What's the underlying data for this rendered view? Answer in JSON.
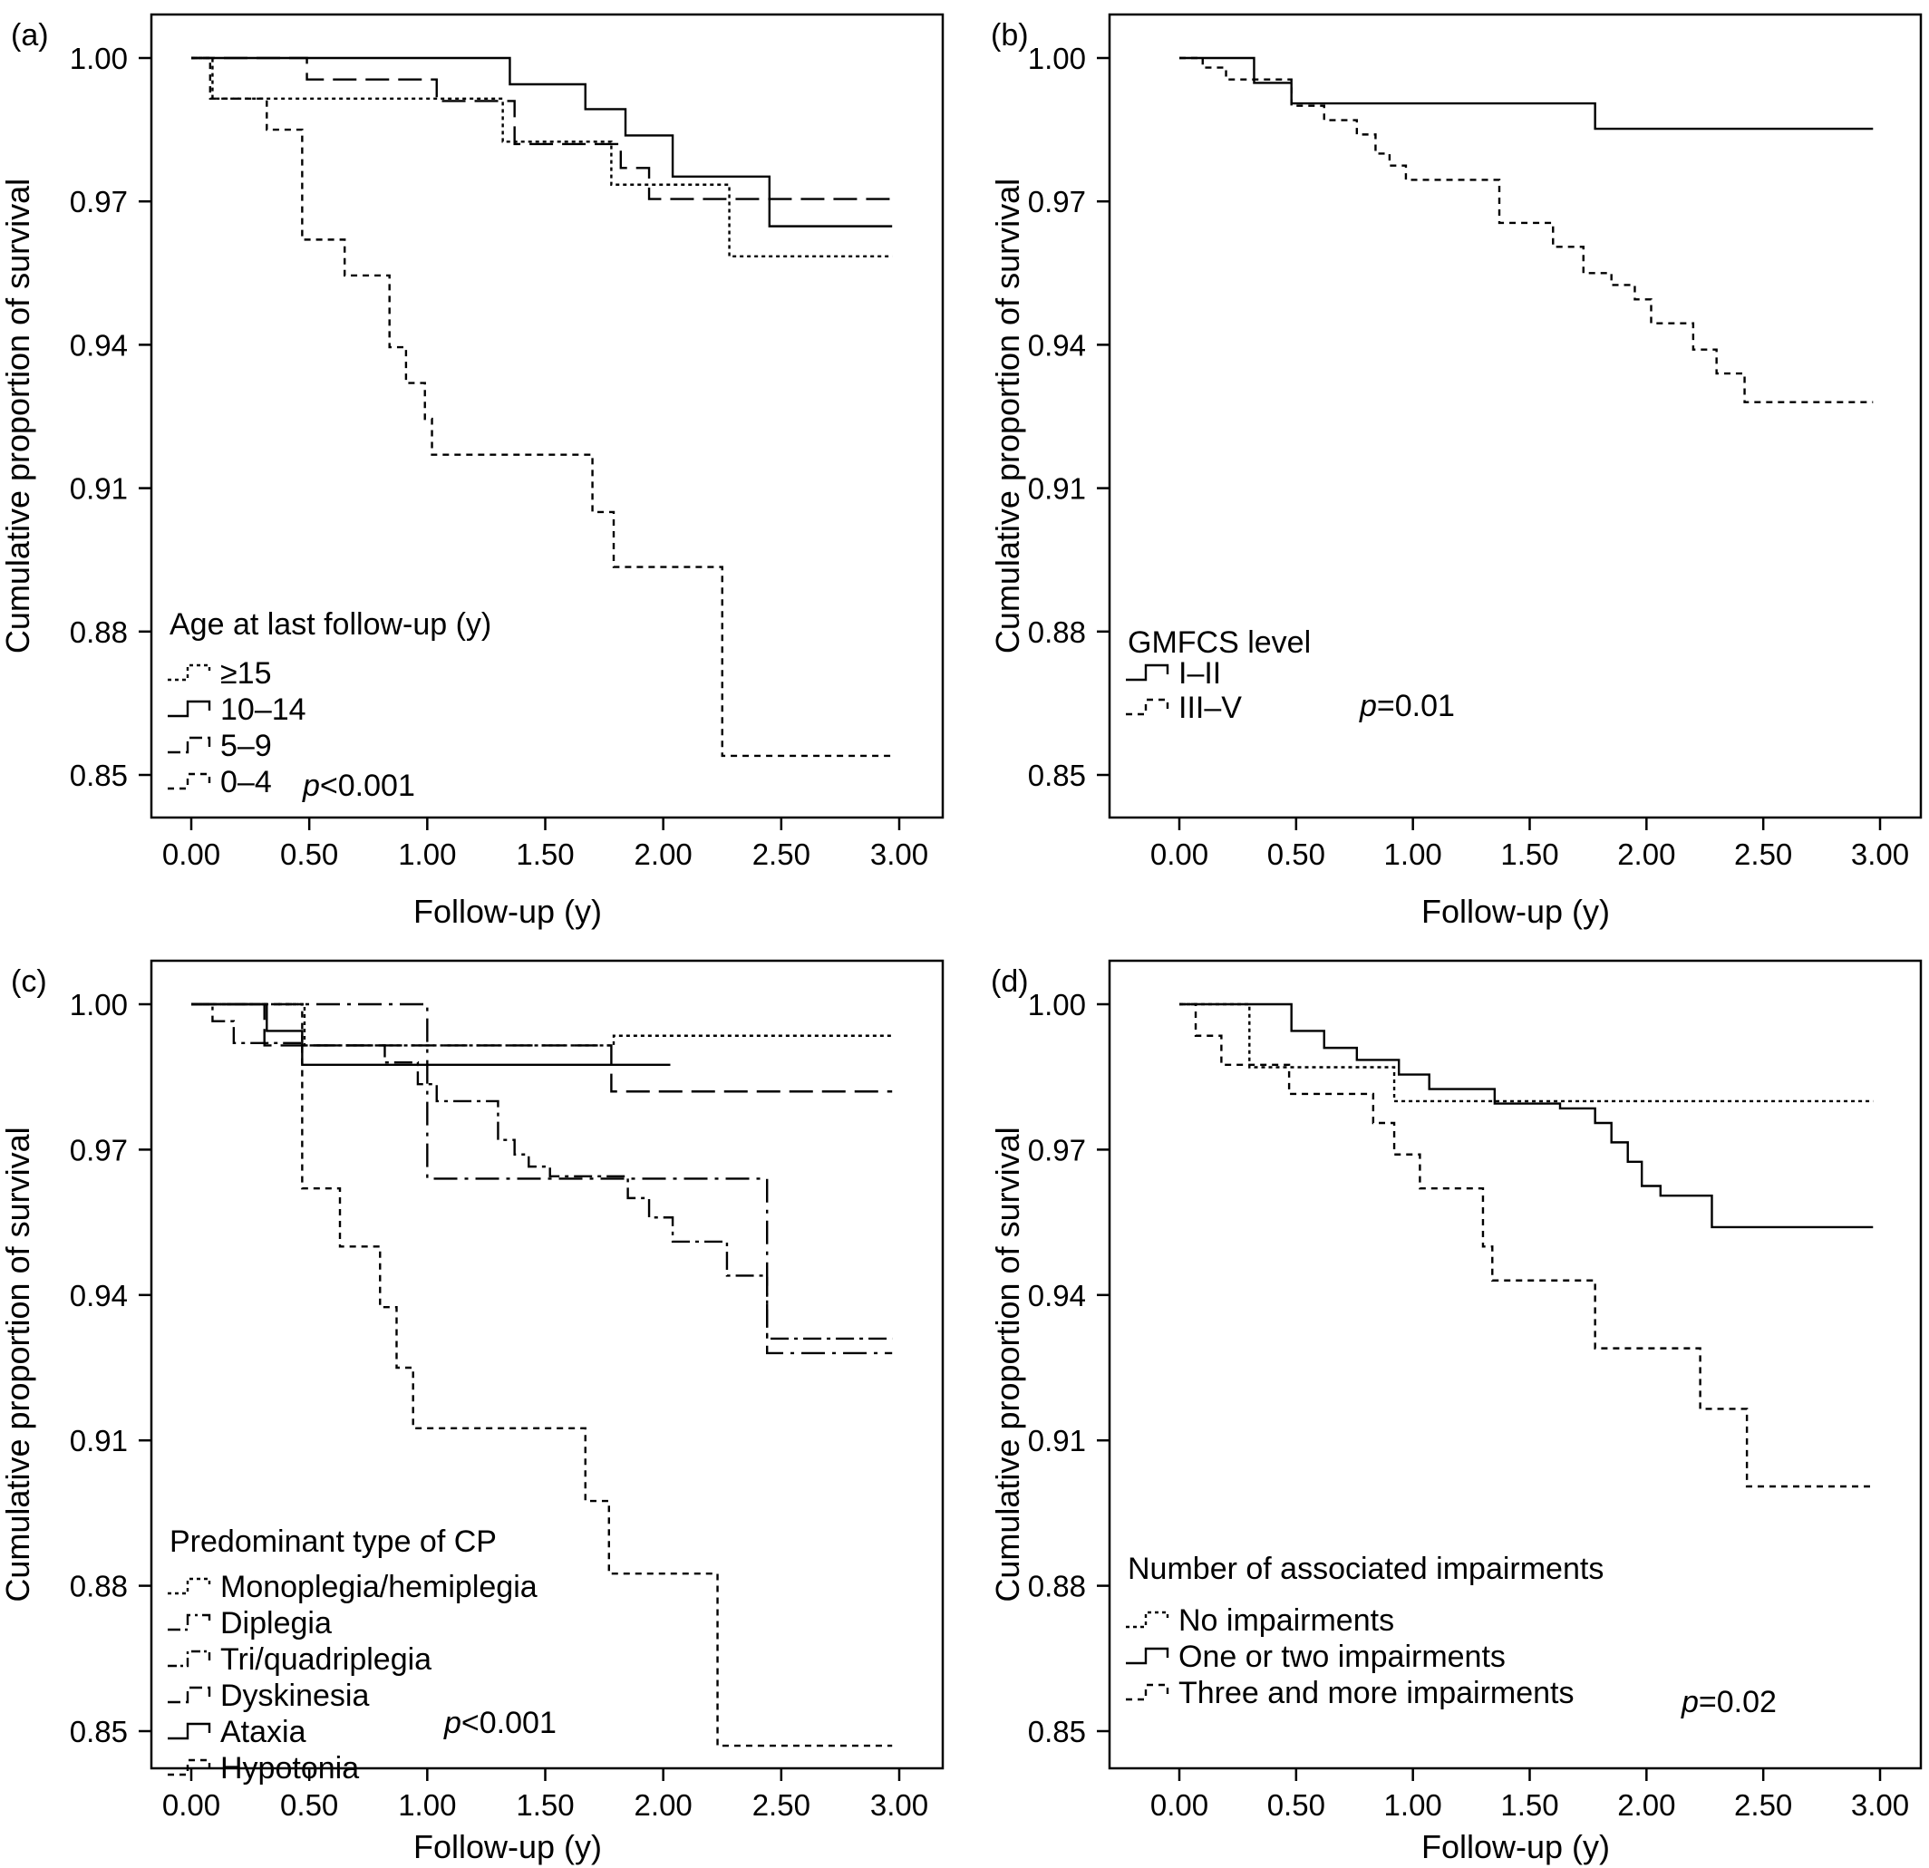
{
  "chart_data": [
    {
      "type": "line",
      "step": true,
      "panel_label": "(a)",
      "xlabel": "Follow-up (y)",
      "ylabel": "Cumulative proportion of survival",
      "xlim": [
        -0.18,
        3.2
      ],
      "ylim": [
        0.842,
        1.008
      ],
      "xticks": [
        0,
        0.5,
        1,
        1.5,
        2,
        2.5,
        3
      ],
      "xtick_labels": [
        "0.00",
        "0.50",
        "1.00",
        "1.50",
        "2.00",
        "2.50",
        "3.00"
      ],
      "yticks": [
        0.85,
        0.88,
        0.91,
        0.94,
        0.97,
        1.0
      ],
      "ytick_labels": [
        "0.85",
        "0.88",
        "0.91",
        "0.94",
        "0.97",
        "1.00"
      ],
      "legend_title": "Age at last follow-up (y)",
      "legend_position": "bottom-left",
      "p_value": "<0.001",
      "series": [
        {
          "name": "≥15",
          "dash": "4,4",
          "x": [
            0,
            0.09,
            1.32,
            1.78,
            2.28,
            2.97
          ],
          "y": [
            1.0,
            0.9915,
            0.9825,
            0.9735,
            0.9585,
            0.9585
          ]
        },
        {
          "name": "10–14",
          "dash": "",
          "x": [
            0,
            1.35,
            1.67,
            1.84,
            2.04,
            2.45,
            2.97
          ],
          "y": [
            1.0,
            0.9945,
            0.9893,
            0.9838,
            0.9752,
            0.9648,
            0.9648
          ]
        },
        {
          "name": "5–9",
          "dash": "26,10",
          "x": [
            0,
            0.49,
            1.04,
            1.37,
            1.82,
            1.94,
            2.97
          ],
          "y": [
            1.0,
            0.9955,
            0.991,
            0.982,
            0.977,
            0.9705,
            0.9705
          ]
        },
        {
          "name": "0–4",
          "dash": "7,6",
          "x": [
            0,
            0.08,
            0.32,
            0.47,
            0.65,
            0.84,
            0.91,
            0.99,
            1.02,
            1.7,
            1.79,
            2.25,
            2.97
          ],
          "y": [
            1.0,
            0.9915,
            0.985,
            0.962,
            0.9545,
            0.9395,
            0.932,
            0.9245,
            0.917,
            0.905,
            0.8935,
            0.854,
            0.854
          ]
        }
      ]
    },
    {
      "type": "line",
      "step": true,
      "panel_label": "(b)",
      "xlabel": "Follow-up (y)",
      "ylabel": "Cumulative proportion of survival",
      "xlim": [
        -0.18,
        3.2
      ],
      "ylim": [
        0.842,
        1.008
      ],
      "xticks": [
        0,
        0.5,
        1,
        1.5,
        2,
        2.5,
        3
      ],
      "xtick_labels": [
        "0.00",
        "0.50",
        "1.00",
        "1.50",
        "2.00",
        "2.50",
        "3.00"
      ],
      "yticks": [
        0.85,
        0.88,
        0.91,
        0.94,
        0.97,
        1.0
      ],
      "ytick_labels": [
        "0.85",
        "0.88",
        "0.91",
        "0.94",
        "0.97",
        "1.00"
      ],
      "legend_title": "GMFCS level",
      "legend_position": "bottom-left",
      "p_value": "=0.01",
      "series": [
        {
          "name": "I–II",
          "dash": "",
          "x": [
            0,
            0.32,
            0.48,
            1.78,
            2.97
          ],
          "y": [
            1.0,
            0.9948,
            0.9905,
            0.9852,
            0.9852
          ]
        },
        {
          "name": "III–V",
          "dash": "7,6",
          "x": [
            0,
            0.1,
            0.2,
            0.48,
            0.62,
            0.76,
            0.84,
            0.9,
            0.97,
            1.37,
            1.6,
            1.73,
            1.85,
            1.95,
            2.02,
            2.2,
            2.3,
            2.42,
            2.97
          ],
          "y": [
            1.0,
            0.998,
            0.9955,
            0.99,
            0.987,
            0.984,
            0.98,
            0.9775,
            0.9745,
            0.9655,
            0.9605,
            0.955,
            0.9525,
            0.9495,
            0.9445,
            0.939,
            0.934,
            0.928,
            0.928
          ]
        }
      ]
    },
    {
      "type": "line",
      "step": true,
      "panel_label": "(c)",
      "xlabel": "Follow-up (y)",
      "ylabel": "Cumulative proportion of survival",
      "xlim": [
        -0.18,
        3.2
      ],
      "ylim": [
        0.842,
        1.008
      ],
      "xticks": [
        0,
        0.5,
        1,
        1.5,
        2,
        2.5,
        3
      ],
      "xtick_labels": [
        "0.00",
        "0.50",
        "1.00",
        "1.50",
        "2.00",
        "2.50",
        "3.00"
      ],
      "yticks": [
        0.85,
        0.88,
        0.91,
        0.94,
        0.97,
        1.0
      ],
      "ytick_labels": [
        "0.85",
        "0.88",
        "0.91",
        "0.94",
        "0.97",
        "1.00"
      ],
      "legend_title": "Predominant type of CP",
      "legend_position": "bottom-left",
      "p_value": "<0.001",
      "series": [
        {
          "name": "Monoplegia/hemiplegia",
          "dash": "4,4",
          "x": [
            0,
            0.48,
            1.79,
            2.97
          ],
          "y": [
            1.0,
            0.9915,
            0.9935,
            0.9935
          ]
        },
        {
          "name": "Diplegia",
          "dash": "26,8,4,8",
          "x": [
            0,
            1.0,
            2.44,
            2.97
          ],
          "y": [
            1.0,
            0.964,
            0.928,
            0.928
          ]
        },
        {
          "name": "Tri/quadriplegia",
          "dash": "20,6,4,6",
          "x": [
            0,
            0.09,
            0.18,
            0.48,
            0.82,
            0.96,
            1.04,
            1.3,
            1.37,
            1.43,
            1.52,
            1.85,
            1.94,
            2.04,
            2.27,
            2.44,
            2.97
          ],
          "y": [
            1.0,
            0.9965,
            0.992,
            0.9915,
            0.988,
            0.9835,
            0.98,
            0.972,
            0.969,
            0.9665,
            0.9645,
            0.96,
            0.956,
            0.951,
            0.944,
            0.931,
            0.931
          ]
        },
        {
          "name": "Dyskinesia",
          "dash": "26,10",
          "x": [
            0,
            0.31,
            0.5,
            1.78,
            2.97
          ],
          "y": [
            1.0,
            0.9915,
            0.9915,
            0.982,
            0.982
          ]
        },
        {
          "name": "Ataxia",
          "dash": "",
          "x": [
            0,
            0.32,
            0.47,
            2.03
          ],
          "y": [
            1.0,
            0.9945,
            0.9875,
            0.9875
          ]
        },
        {
          "name": "Hypotonia",
          "dash": "7,6",
          "x": [
            0,
            0.47,
            0.63,
            0.8,
            0.87,
            0.94,
            1.33,
            1.67,
            1.77,
            2.23,
            2.97
          ],
          "y": [
            1.0,
            0.962,
            0.95,
            0.9375,
            0.925,
            0.9125,
            0.9125,
            0.8975,
            0.8825,
            0.847,
            0.847
          ]
        }
      ]
    },
    {
      "type": "line",
      "step": true,
      "panel_label": "(d)",
      "xlabel": "Follow-up (y)",
      "ylabel": "Cumulative proportion of survival",
      "xlim": [
        -0.18,
        3.2
      ],
      "ylim": [
        0.842,
        1.008
      ],
      "xticks": [
        0,
        0.5,
        1,
        1.5,
        2,
        2.5,
        3
      ],
      "xtick_labels": [
        "0.00",
        "0.50",
        "1.00",
        "1.50",
        "2.00",
        "2.50",
        "3.00"
      ],
      "yticks": [
        0.85,
        0.88,
        0.91,
        0.94,
        0.97,
        1.0
      ],
      "ytick_labels": [
        "0.85",
        "0.88",
        "0.91",
        "0.94",
        "0.97",
        "1.00"
      ],
      "legend_title": "Number of associated impairments",
      "legend_position": "bottom-left",
      "p_value": "=0.02",
      "series": [
        {
          "name": "No impairments",
          "dash": "4,4",
          "x": [
            0,
            0.3,
            0.92,
            2.97
          ],
          "y": [
            1.0,
            0.987,
            0.98,
            0.98
          ]
        },
        {
          "name": "One or two impairments",
          "dash": "",
          "x": [
            0,
            0.48,
            0.62,
            0.76,
            0.94,
            1.07,
            1.35,
            1.63,
            1.78,
            1.85,
            1.92,
            1.98,
            2.06,
            2.28,
            2.97
          ],
          "y": [
            1.0,
            0.9945,
            0.991,
            0.9885,
            0.9855,
            0.9825,
            0.9795,
            0.9785,
            0.9755,
            0.9715,
            0.9675,
            0.9625,
            0.9605,
            0.954,
            0.954
          ]
        },
        {
          "name": "Three and more impairments",
          "dash": "7,6",
          "x": [
            0,
            0.07,
            0.18,
            0.47,
            0.83,
            0.92,
            1.03,
            1.3,
            1.34,
            1.78,
            2.23,
            2.43,
            2.97
          ],
          "y": [
            1.0,
            0.9935,
            0.9875,
            0.9815,
            0.9755,
            0.969,
            0.962,
            0.95,
            0.943,
            0.929,
            0.9165,
            0.9005,
            0.9005
          ]
        }
      ]
    }
  ]
}
